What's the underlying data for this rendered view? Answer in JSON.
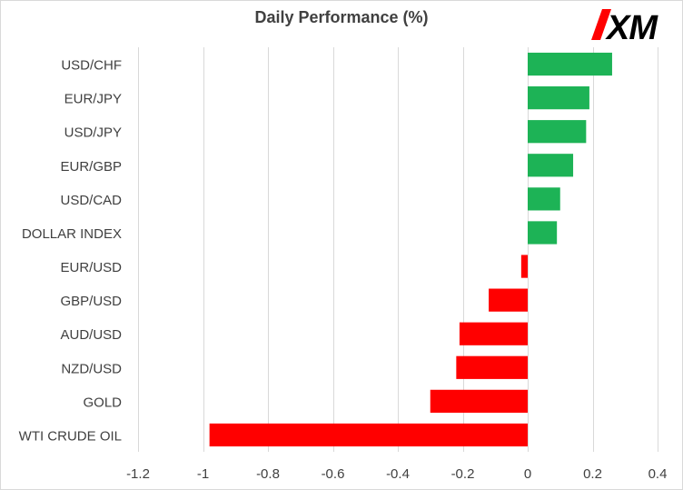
{
  "chart_data": {
    "type": "bar",
    "orientation": "horizontal",
    "title": "Daily Performance (%)",
    "categories": [
      "USD/CHF",
      "EUR/JPY",
      "USD/JPY",
      "EUR/GBP",
      "USD/CAD",
      "DOLLAR INDEX",
      "EUR/USD",
      "GBP/USD",
      "AUD/USD",
      "NZD/USD",
      "GOLD",
      "WTI CRUDE OIL"
    ],
    "values": [
      0.26,
      0.19,
      0.18,
      0.14,
      0.1,
      0.09,
      -0.02,
      -0.12,
      -0.21,
      -0.22,
      -0.3,
      -0.98
    ],
    "xlim": [
      -1.2,
      0.4
    ],
    "xticks": [
      -1.2,
      -1,
      -0.8,
      -0.6,
      -0.4,
      -0.2,
      0,
      0.2,
      0.4
    ],
    "xtick_labels": [
      "-1.2",
      "-1",
      "-0.8",
      "-0.6",
      "-0.4",
      "-0.2",
      "0",
      "0.2",
      "0.4"
    ],
    "grid": "vertical",
    "colors": {
      "positive": "#1db356",
      "negative": "#ff0000"
    }
  },
  "logo": {
    "text": "XM",
    "color": "#ff0000",
    "text_color": "#000000"
  }
}
